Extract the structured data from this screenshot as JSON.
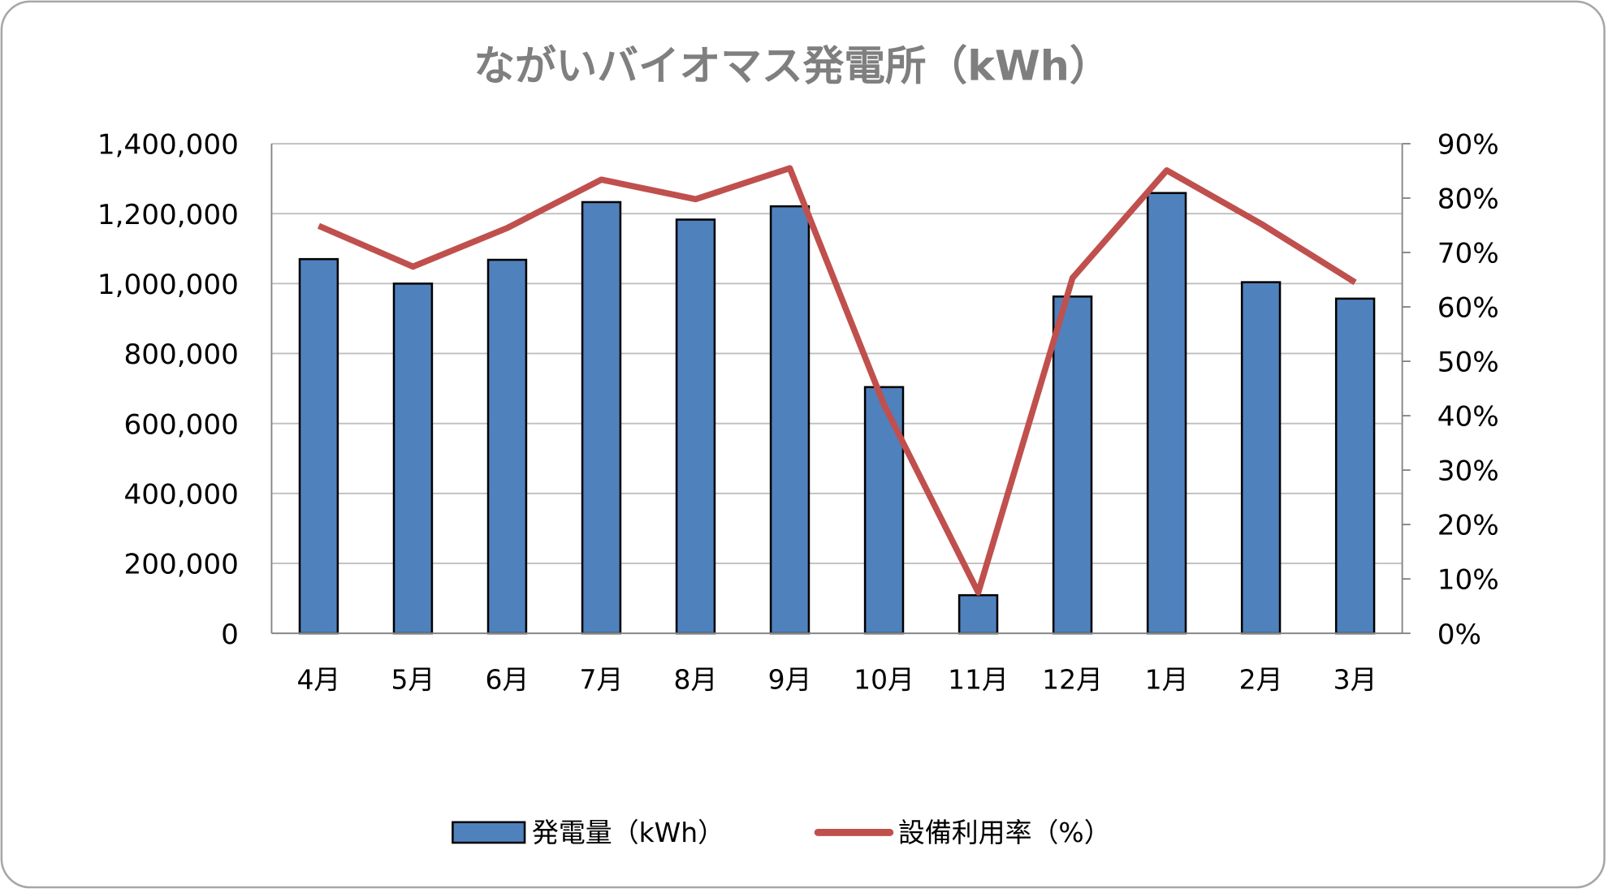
{
  "chart_data": {
    "type": "bar+line",
    "title": "ながいバイオマス発電所（kWh）",
    "categories": [
      "4月",
      "5月",
      "6月",
      "7月",
      "8月",
      "9月",
      "10月",
      "11月",
      "12月",
      "1月",
      "2月",
      "3月"
    ],
    "series": [
      {
        "name": "発電量（kWh）",
        "type": "bar",
        "axis": "left",
        "color": "#4F81BD",
        "values": [
          1070000,
          1000000,
          1068000,
          1233000,
          1183000,
          1221000,
          704000,
          109000,
          963000,
          1259000,
          1004000,
          957000
        ]
      },
      {
        "name": "設備利用率（%）",
        "type": "line",
        "axis": "right",
        "color": "#C0504D",
        "values": [
          74.9,
          67.4,
          74.5,
          83.4,
          79.8,
          85.5,
          42.0,
          7.5,
          65.3,
          85.1,
          75.3,
          64.5
        ]
      }
    ],
    "y_left": {
      "lim": [
        0,
        1400000
      ],
      "ticks": [
        "0",
        "200,000",
        "400,000",
        "600,000",
        "800,000",
        "1,000,000",
        "1,200,000",
        "1,400,000"
      ]
    },
    "y_right": {
      "lim": [
        0,
        90
      ],
      "ticks": [
        "0%",
        "10%",
        "20%",
        "30%",
        "40%",
        "50%",
        "60%",
        "70%",
        "80%",
        "90%"
      ]
    },
    "grid": true,
    "legend": "bottom"
  }
}
